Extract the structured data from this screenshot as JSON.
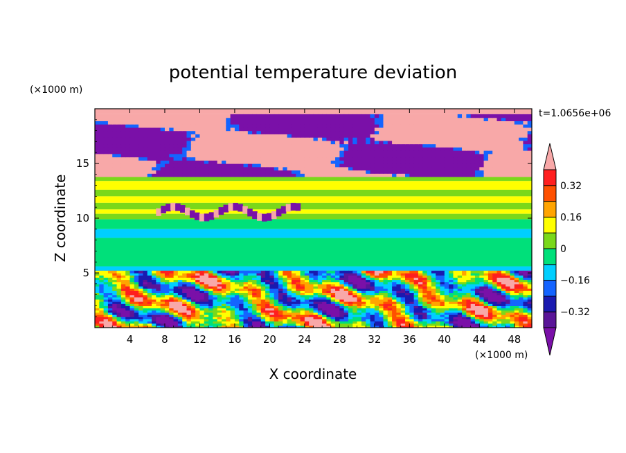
{
  "chart_data": {
    "type": "heatmap",
    "title": "potential temperature deviation",
    "xlabel": "X coordinate",
    "ylabel": "Z coordinate",
    "x_unit": "(×1000 m)",
    "y_unit": "(×1000 m)",
    "time_label": "t=1.0656e+06",
    "xlim": [
      0,
      50
    ],
    "ylim": [
      0,
      20
    ],
    "x_ticks": [
      4,
      8,
      12,
      16,
      20,
      24,
      28,
      32,
      36,
      40,
      44,
      48
    ],
    "y_ticks": [
      5,
      10,
      15
    ],
    "colorbar": {
      "levels": [
        -0.4,
        -0.32,
        -0.24,
        -0.16,
        -0.08,
        0,
        0.08,
        0.16,
        0.24,
        0.32,
        0.4
      ],
      "labels": [
        "0.32",
        "0.16",
        "0",
        "−0.16",
        "−0.32"
      ],
      "label_values": [
        0.32,
        0.16,
        0,
        -0.16,
        -0.32
      ],
      "colors": [
        "#7a10a8",
        "#5a1598",
        "#1a1ab0",
        "#1464ff",
        "#00cfff",
        "#00e07a",
        "#7ad81a",
        "#ffff00",
        "#ffa400",
        "#ff5000",
        "#ff1f1f",
        "#f8a8a8"
      ],
      "extends": "both"
    },
    "bands": [
      {
        "z": [
          19.5,
          20
        ],
        "value": 0.45
      },
      {
        "z": [
          13.8,
          19.5
        ],
        "value": 0.45,
        "note": "mixed pink/purple upper layer"
      },
      {
        "z": [
          13.4,
          13.8
        ],
        "value": 0.05
      },
      {
        "z": [
          12.6,
          13.4
        ],
        "value": 0.1
      },
      {
        "z": [
          12.0,
          12.6
        ],
        "value": 0.04
      },
      {
        "z": [
          11.4,
          12.0
        ],
        "value": 0.1
      },
      {
        "z": [
          10.8,
          11.4
        ],
        "value": 0.05
      },
      {
        "z": [
          10.4,
          10.8
        ],
        "value": 0.13
      },
      {
        "z": [
          9.9,
          10.4
        ],
        "value": 0.05
      },
      {
        "z": [
          9.0,
          9.9
        ],
        "value": -0.02
      },
      {
        "z": [
          8.2,
          9.0
        ],
        "value": -0.12
      },
      {
        "z": [
          5.6,
          8.2
        ],
        "value": -0.05
      },
      {
        "z": [
          5.2,
          5.6
        ],
        "value": -0.12
      },
      {
        "z": [
          0,
          5.2
        ],
        "value": -0.25,
        "note": "turbulent lower layer"
      }
    ],
    "grid": false,
    "legend_position": "right"
  }
}
